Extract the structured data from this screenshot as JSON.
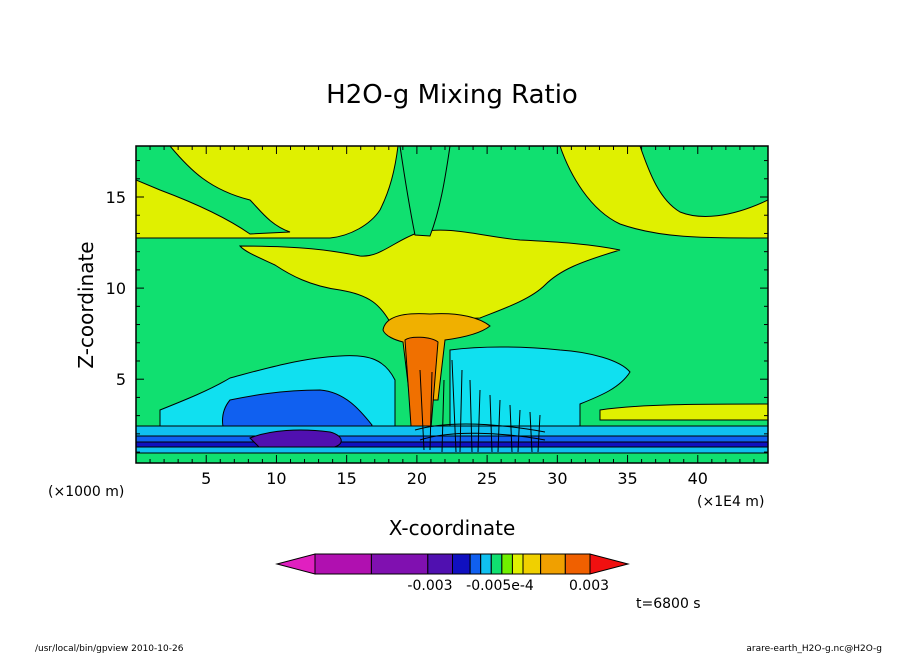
{
  "chart_data": {
    "type": "heatmap",
    "title": "H2O-g Mixing Ratio",
    "xlabel": "X-coordinate",
    "ylabel": "Z-coordinate",
    "x_unit_left": "(×1000 m)",
    "x_unit_right": "(×1E4 m)",
    "xlim": [
      0,
      45
    ],
    "ylim": [
      0.4,
      17.8
    ],
    "x_ticks": [
      "5",
      "10",
      "15",
      "20",
      "25",
      "30",
      "35",
      "40"
    ],
    "x_tick_values": [
      5,
      10,
      15,
      20,
      25,
      30,
      35,
      40
    ],
    "y_ticks": [
      "5",
      "10",
      "15"
    ],
    "y_tick_values": [
      5,
      10,
      15
    ],
    "colorbar": {
      "colors": [
        "#e020c0",
        "#b010b0",
        "#8010b0",
        "#5010b0",
        "#1010c0",
        "#1060f0",
        "#10c0f0",
        "#10e070",
        "#70f000",
        "#e0f000",
        "#f0d000",
        "#f0a000",
        "#f06000",
        "#f01010"
      ],
      "labels": [
        "-0.003",
        "-0.005e-4",
        "0.003"
      ]
    },
    "time_label": "t=6800 s"
  },
  "footer": {
    "left": "/usr/local/bin/gpview   2010-10-26",
    "right": "arare-earth_H2O-g.nc@H2O-g"
  }
}
